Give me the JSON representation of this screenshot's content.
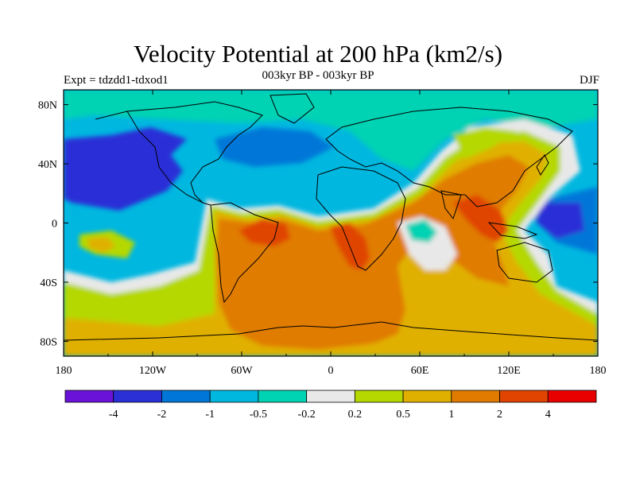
{
  "figure": {
    "title": "Velocity Potential at 200 hPa (km2/s)",
    "subtitle": "003kyr BP - 003kyr BP",
    "experiment": "Expt = tdzdd1-tdxod1",
    "season": "DJF"
  },
  "map": {
    "lon_ticks": [
      "180",
      "120W",
      "60W",
      "0",
      "60E",
      "120E",
      "180"
    ],
    "lat_ticks": [
      "80N",
      "40N",
      "0",
      "40S",
      "80S"
    ]
  },
  "colorbar": {
    "colors": [
      "#6a12d8",
      "#2a2fd6",
      "#0077d8",
      "#00b7e0",
      "#00d2b4",
      "#e8e8e8",
      "#b5d800",
      "#e0b000",
      "#e07b00",
      "#e04400",
      "#e80000"
    ],
    "labels": [
      "-4",
      "-2",
      "-1",
      "-0.5",
      "-0.2",
      "0.2",
      "0.5",
      "1",
      "2",
      "4"
    ]
  }
}
